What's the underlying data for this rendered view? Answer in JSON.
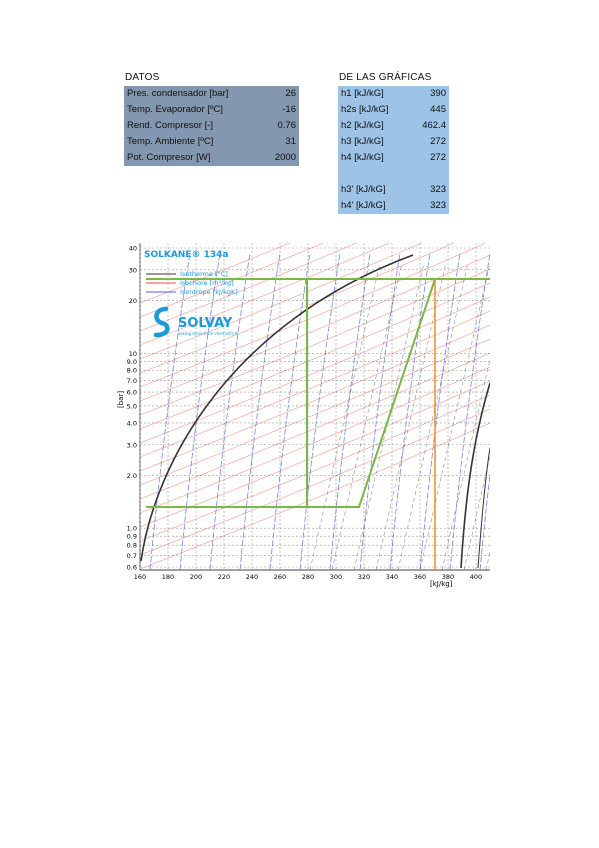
{
  "datos": {
    "title": "DATOS",
    "rows": [
      {
        "label": "Pres. condensador [bar]",
        "value": "26"
      },
      {
        "label": "Temp. Evaporador [ºC]",
        "value": "-16"
      },
      {
        "label": "Rend. Compresor [-]",
        "value": "0.76"
      },
      {
        "label": "Temp. Ambiente [ºC]",
        "value": "31"
      },
      {
        "label": "Pot. Compresor [W]",
        "value": "2000"
      }
    ]
  },
  "graficas": {
    "title": "DE LAS GRÁFICAS",
    "rows": [
      {
        "label": "h1 [kJ/kG]",
        "value": "390"
      },
      {
        "label": "h2s [kJ/kG]",
        "value": "445"
      },
      {
        "label": "h2 [kJ/kG]",
        "value": "462.4"
      },
      {
        "label": "h3 [kJ/kG]",
        "value": "272"
      },
      {
        "label": "h4 [kJ/kG]",
        "value": "272"
      },
      {
        "label": "",
        "value": ""
      },
      {
        "label": "h3' [kJ/kG]",
        "value": "323"
      },
      {
        "label": "h4' [kJ/kG]",
        "value": "323"
      }
    ]
  },
  "diagram": {
    "title": "SOLKANE® 134a",
    "legend": [
      "Isotherme [°C]",
      "Isochore [m³/kg]",
      "Isentrope [kJ/kgK]"
    ],
    "brand": "SOLVAY",
    "tagline": "asking more from chemistry®",
    "y_axis_label": "[bar]",
    "x_axis_label": "[kJ/kg]",
    "y_ticks": [
      "40",
      "30",
      "20",
      "10",
      "9.0",
      "8.0",
      "7.0",
      "6.0",
      "5.0",
      "4.0",
      "3.0",
      "2.0",
      "1.0",
      "0.9",
      "0.8",
      "0.7",
      "0.6"
    ],
    "x_ticks": [
      "160",
      "180",
      "200",
      "220",
      "240",
      "260",
      "280",
      "300",
      "320",
      "340",
      "360",
      "380",
      "400"
    ],
    "colors": {
      "isotherm": "#333333",
      "isochore": "#e8523a",
      "isentrope": "#5566dd",
      "cycle": "#7ab648",
      "marker": "#f28c28",
      "logo": "#1a9ad6"
    }
  }
}
